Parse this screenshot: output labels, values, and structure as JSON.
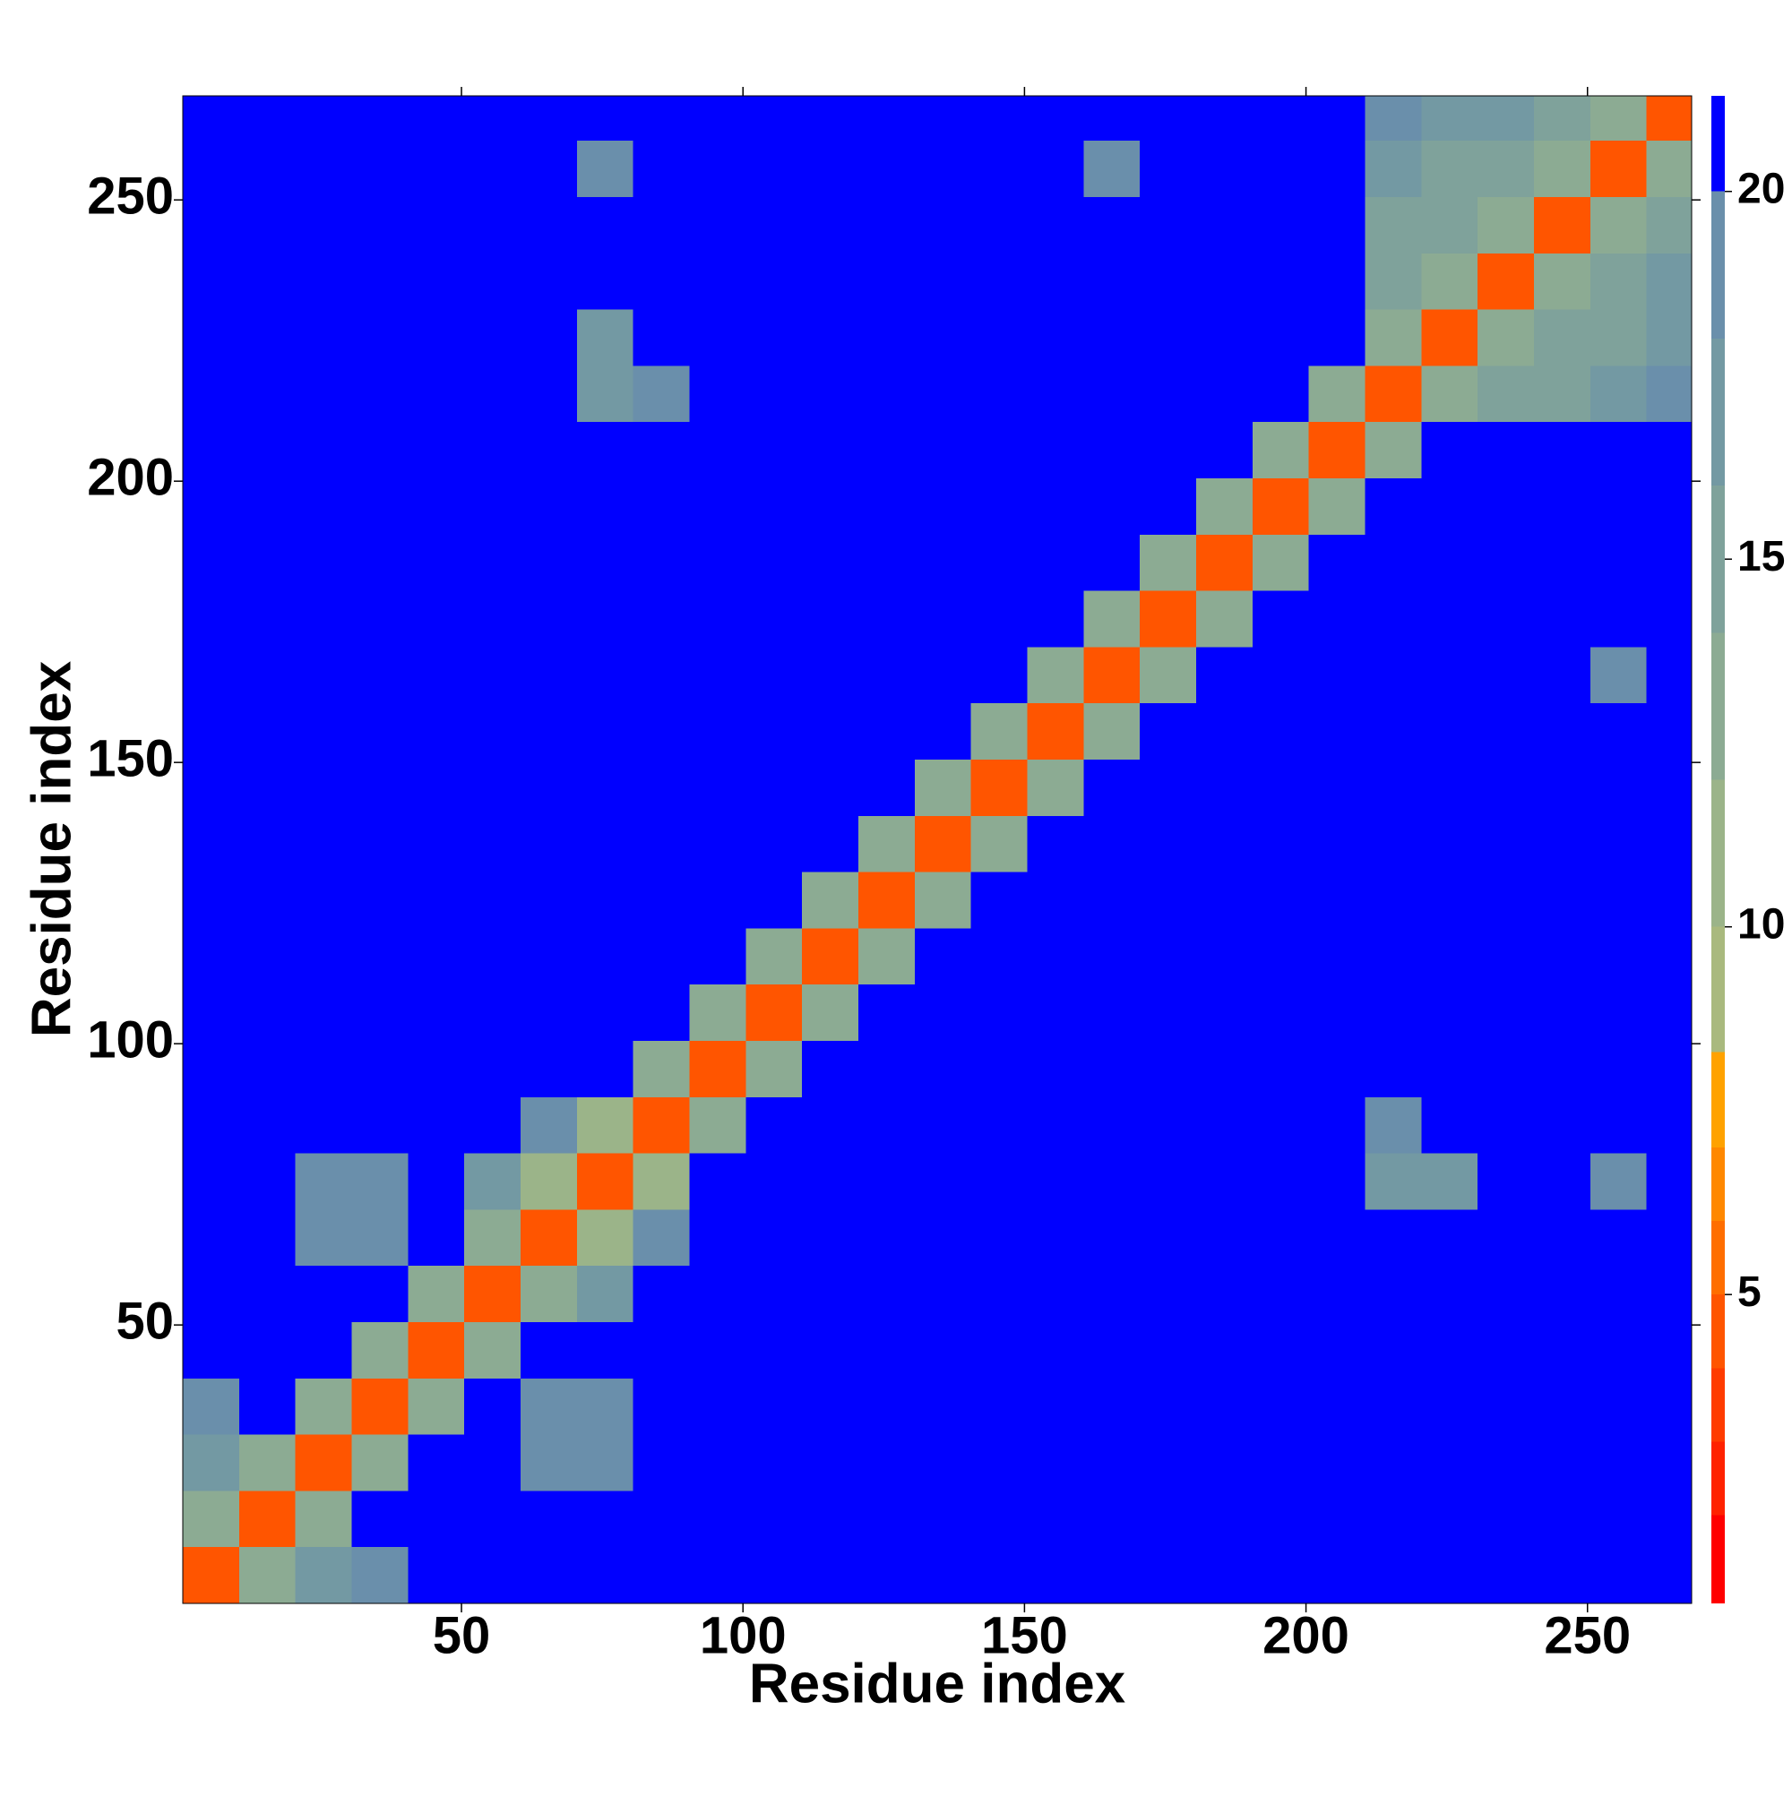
{
  "chart_data": {
    "type": "heatmap",
    "x_label": "Residue index",
    "y_label": "Residue index",
    "xlim": [
      0.5,
      268.5
    ],
    "ylim": [
      0.5,
      268.5
    ],
    "xticks": [
      50,
      100,
      150,
      200,
      250
    ],
    "yticks": [
      50,
      100,
      150,
      200,
      250
    ],
    "x_bins": [
      0.5,
      10.5,
      20.5,
      30.5,
      40.5,
      50.5,
      60.5,
      70.5,
      80.5,
      90.5,
      100.5,
      110.5,
      120.5,
      130.5,
      140.5,
      150.5,
      160.5,
      170.5,
      180.5,
      190.5,
      200.5,
      210.5,
      220.5,
      230.5,
      240.5,
      250.5,
      260.5,
      268.5
    ],
    "y_bins": [
      0.5,
      10.5,
      20.5,
      30.5,
      40.5,
      50.5,
      60.5,
      70.5,
      80.5,
      90.5,
      100.5,
      110.5,
      120.5,
      130.5,
      140.5,
      150.5,
      160.5,
      170.5,
      180.5,
      190.5,
      200.5,
      210.5,
      220.5,
      230.5,
      240.5,
      250.5,
      260.5,
      268.5
    ],
    "z": [
      [
        4,
        12,
        16,
        19,
        21,
        21,
        21,
        21,
        21,
        21,
        21,
        21,
        21,
        21,
        21,
        21,
        21,
        21,
        21,
        21,
        21,
        21,
        21,
        21,
        21,
        21,
        21
      ],
      [
        12,
        4,
        12,
        20,
        21,
        21,
        21,
        21,
        21,
        21,
        21,
        21,
        21,
        21,
        21,
        21,
        21,
        21,
        21,
        21,
        21,
        21,
        21,
        21,
        21,
        21,
        21
      ],
      [
        16,
        12,
        4,
        12,
        20,
        21,
        19,
        19,
        21,
        21,
        21,
        21,
        21,
        21,
        21,
        21,
        21,
        21,
        21,
        21,
        21,
        21,
        21,
        21,
        21,
        21,
        21
      ],
      [
        19,
        20,
        12,
        4,
        12,
        20,
        19,
        18,
        21,
        21,
        21,
        21,
        21,
        21,
        21,
        21,
        21,
        21,
        21,
        21,
        21,
        21,
        21,
        21,
        21,
        21,
        21
      ],
      [
        21,
        21,
        20,
        12,
        4,
        12,
        20,
        20,
        21,
        21,
        21,
        21,
        21,
        21,
        21,
        21,
        21,
        21,
        21,
        21,
        21,
        21,
        21,
        21,
        21,
        21,
        21
      ],
      [
        21,
        21,
        21,
        20,
        12,
        4,
        12,
        17,
        21,
        21,
        21,
        21,
        21,
        21,
        21,
        21,
        21,
        21,
        21,
        21,
        21,
        21,
        21,
        21,
        21,
        21,
        21
      ],
      [
        21,
        21,
        19,
        19,
        20,
        12,
        4,
        11,
        19,
        21,
        21,
        21,
        21,
        21,
        21,
        21,
        21,
        21,
        21,
        21,
        21,
        21,
        21,
        21,
        21,
        21,
        21
      ],
      [
        21,
        21,
        19,
        18,
        20,
        17,
        11,
        4,
        11,
        20,
        21,
        21,
        21,
        21,
        21,
        21,
        20,
        21,
        21,
        21,
        21,
        17,
        17,
        21,
        21,
        18,
        21
      ],
      [
        21,
        21,
        21,
        21,
        21,
        21,
        19,
        11,
        4,
        12,
        21,
        21,
        21,
        21,
        21,
        21,
        21,
        21,
        21,
        21,
        21,
        19,
        21,
        21,
        21,
        21,
        21
      ],
      [
        21,
        21,
        21,
        21,
        21,
        21,
        21,
        20,
        12,
        4,
        13,
        21,
        21,
        21,
        21,
        21,
        21,
        21,
        21,
        21,
        21,
        21,
        21,
        21,
        21,
        21,
        21
      ],
      [
        21,
        21,
        21,
        21,
        21,
        21,
        21,
        21,
        21,
        13,
        4,
        12,
        21,
        21,
        21,
        21,
        21,
        21,
        21,
        21,
        21,
        21,
        21,
        21,
        21,
        21,
        21
      ],
      [
        21,
        21,
        21,
        21,
        21,
        21,
        21,
        21,
        21,
        21,
        12,
        4,
        13,
        21,
        21,
        21,
        21,
        21,
        21,
        21,
        21,
        21,
        21,
        21,
        21,
        21,
        21
      ],
      [
        21,
        21,
        21,
        21,
        21,
        21,
        21,
        21,
        21,
        21,
        21,
        13,
        4,
        13,
        21,
        21,
        21,
        21,
        21,
        21,
        21,
        21,
        21,
        21,
        21,
        21,
        21
      ],
      [
        21,
        21,
        21,
        21,
        21,
        21,
        21,
        21,
        21,
        21,
        21,
        21,
        13,
        4,
        13,
        21,
        21,
        21,
        21,
        21,
        21,
        21,
        21,
        21,
        21,
        21,
        21
      ],
      [
        21,
        21,
        21,
        21,
        21,
        21,
        21,
        21,
        21,
        21,
        21,
        21,
        21,
        13,
        4,
        13,
        21,
        21,
        21,
        21,
        21,
        21,
        21,
        21,
        21,
        21,
        21
      ],
      [
        21,
        21,
        21,
        21,
        21,
        21,
        21,
        21,
        21,
        21,
        21,
        21,
        21,
        21,
        13,
        4,
        12,
        21,
        21,
        21,
        21,
        21,
        21,
        21,
        21,
        21,
        21
      ],
      [
        21,
        21,
        21,
        21,
        21,
        21,
        21,
        20,
        21,
        21,
        21,
        21,
        21,
        21,
        21,
        12,
        4,
        12,
        21,
        21,
        21,
        21,
        21,
        21,
        21,
        19,
        21
      ],
      [
        21,
        21,
        21,
        21,
        21,
        21,
        21,
        21,
        21,
        21,
        21,
        21,
        21,
        21,
        21,
        21,
        12,
        4,
        12,
        21,
        21,
        21,
        21,
        21,
        21,
        21,
        21
      ],
      [
        21,
        21,
        21,
        21,
        21,
        21,
        21,
        21,
        21,
        21,
        21,
        21,
        21,
        21,
        21,
        21,
        21,
        12,
        4,
        12,
        21,
        21,
        21,
        21,
        21,
        21,
        21
      ],
      [
        21,
        21,
        21,
        21,
        21,
        21,
        21,
        21,
        21,
        21,
        21,
        21,
        21,
        21,
        21,
        21,
        21,
        21,
        12,
        4,
        12,
        21,
        21,
        21,
        21,
        21,
        21
      ],
      [
        21,
        21,
        21,
        21,
        21,
        21,
        21,
        21,
        21,
        21,
        21,
        21,
        21,
        21,
        21,
        21,
        21,
        21,
        21,
        12,
        4,
        12,
        21,
        21,
        21,
        21,
        21
      ],
      [
        21,
        21,
        21,
        21,
        21,
        21,
        21,
        17,
        19,
        21,
        21,
        21,
        21,
        21,
        21,
        21,
        21,
        21,
        21,
        21,
        12,
        4,
        12,
        15,
        15,
        16,
        19
      ],
      [
        21,
        21,
        21,
        21,
        21,
        21,
        21,
        17,
        21,
        21,
        21,
        21,
        21,
        21,
        21,
        21,
        21,
        21,
        21,
        21,
        21,
        12,
        4,
        12,
        14,
        15,
        17
      ],
      [
        21,
        21,
        21,
        21,
        21,
        21,
        21,
        21,
        21,
        21,
        21,
        21,
        21,
        21,
        21,
        21,
        21,
        21,
        21,
        21,
        21,
        15,
        12,
        4,
        12,
        14,
        16
      ],
      [
        21,
        21,
        21,
        21,
        21,
        21,
        21,
        21,
        21,
        21,
        21,
        21,
        21,
        21,
        21,
        21,
        21,
        21,
        21,
        21,
        21,
        15,
        14,
        12,
        4,
        12,
        14
      ],
      [
        21,
        21,
        21,
        21,
        21,
        21,
        21,
        18,
        21,
        21,
        21,
        21,
        21,
        21,
        21,
        21,
        19,
        21,
        21,
        21,
        21,
        16,
        15,
        14,
        12,
        4,
        12
      ],
      [
        21,
        21,
        21,
        21,
        21,
        21,
        21,
        21,
        21,
        21,
        21,
        21,
        21,
        21,
        21,
        21,
        21,
        21,
        21,
        21,
        21,
        19,
        17,
        16,
        14,
        12,
        4
      ]
    ],
    "colorbar": {
      "levels": [
        0.8,
        2,
        3,
        4,
        5,
        6,
        7,
        8.3,
        10,
        12,
        14,
        16,
        18,
        20,
        21.3
      ],
      "colors": [
        "#ff0000",
        "#ff2200",
        "#ff3c00",
        "#ff5500",
        "#ff6e00",
        "#ff8800",
        "#ffa200",
        "#a9b97e",
        "#9bb489",
        "#8cab93",
        "#7fa29b",
        "#7399a3",
        "#6a8fab",
        "#0000ff"
      ],
      "ticks": [
        5,
        10,
        15,
        20
      ]
    }
  }
}
